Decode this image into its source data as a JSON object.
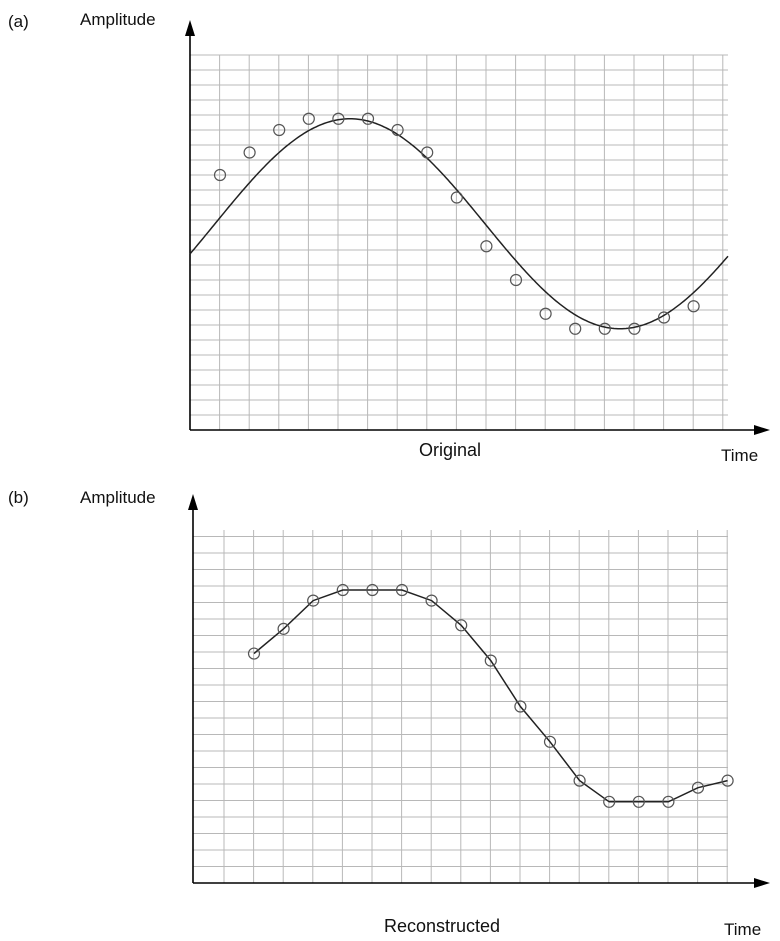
{
  "panels": [
    {
      "id": "a",
      "letter": "(a)",
      "y_axis_label": "Amplitude",
      "x_axis_label": "Time",
      "caption": "Original",
      "type": "continuous-with-samples",
      "sample_values": [
        0.68,
        0.74,
        0.8,
        0.83,
        0.83,
        0.83,
        0.8,
        0.74,
        0.62,
        0.49,
        0.4,
        0.31,
        0.27,
        0.27,
        0.27,
        0.3,
        0.33
      ]
    },
    {
      "id": "b",
      "letter": "(b)",
      "y_axis_label": "Amplitude",
      "x_axis_label": "Time",
      "caption": "Reconstructed",
      "type": "samples-connected",
      "sample_values": [
        0.65,
        0.72,
        0.8,
        0.83,
        0.83,
        0.83,
        0.8,
        0.73,
        0.63,
        0.5,
        0.4,
        0.29,
        0.23,
        0.23,
        0.23,
        0.27,
        0.29
      ]
    }
  ]
}
